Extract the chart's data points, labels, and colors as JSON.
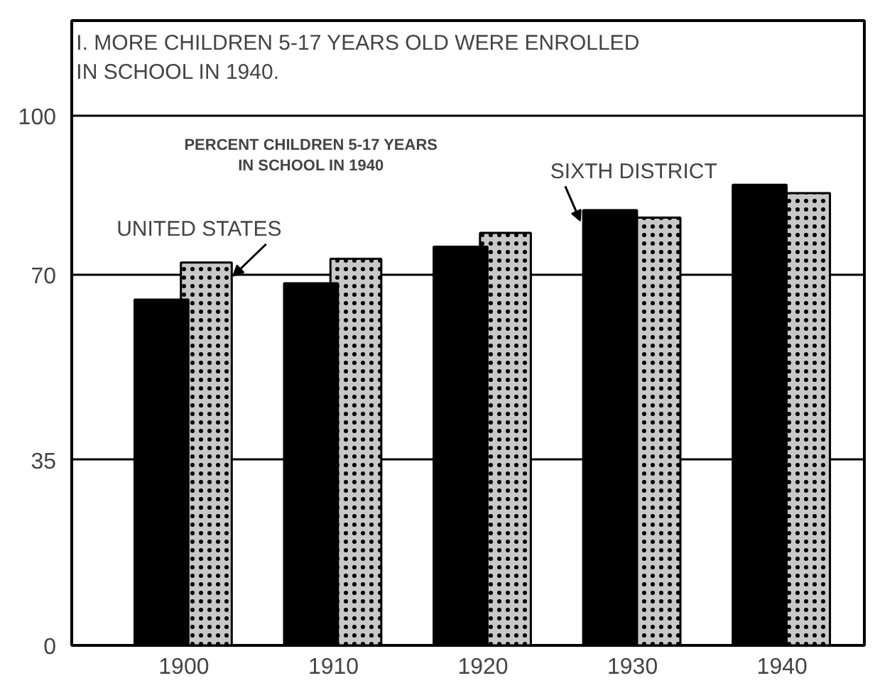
{
  "chart_data": {
    "type": "bar",
    "title": "I. MORE CHILDREN 5-17 YEARS OLD WERE ENROLLED\nIN SCHOOL IN 1940.",
    "subtitle": "PERCENT CHILDREN 5-17 YEARS\nIN SCHOOL IN 1940",
    "categories": [
      "1900",
      "1910",
      "1920",
      "1930",
      "1940"
    ],
    "series": [
      {
        "name": "SIXTH DISTRICT",
        "color": "#000000",
        "values": [
          65.3,
          68.4,
          75.3,
          82.2,
          87.0
        ]
      },
      {
        "name": "UNITED STATES",
        "color": "#c8c8c8",
        "values": [
          72.3,
          73.0,
          77.9,
          80.8,
          85.4
        ]
      }
    ],
    "ylim": [
      0,
      118
    ],
    "yticks": [
      0,
      35,
      70,
      100
    ],
    "grid": "y",
    "legend": false
  }
}
